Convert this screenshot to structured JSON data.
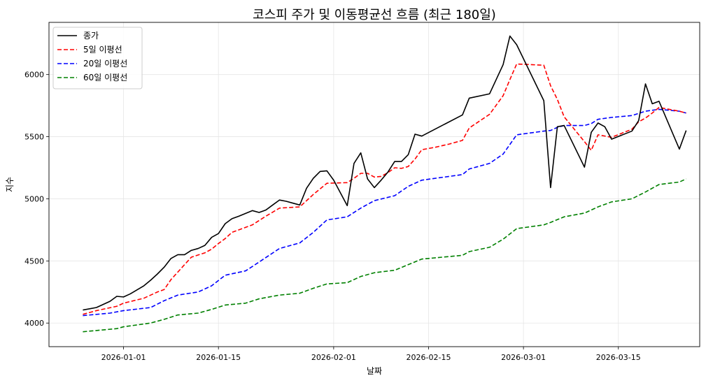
{
  "chart_data": {
    "type": "line",
    "title": "코스피 주가 및 이동평균선 흐름 (최근 180일)",
    "xlabel": "날짜",
    "ylabel": "지수",
    "xlim": [
      "2025-12-21",
      "2026-03-27"
    ],
    "ylim": [
      3810,
      6420
    ],
    "x_ticks": [
      "2026-01-01",
      "2026-01-15",
      "2026-02-01",
      "2026-02-15",
      "2026-03-01",
      "2026-03-15"
    ],
    "y_ticks": [
      4000,
      4500,
      5000,
      5500,
      6000
    ],
    "grid": true,
    "legend_position": "top-left",
    "series": [
      {
        "name": "종가",
        "color": "#000000",
        "style": "solid",
        "points": [
          [
            "2025-12-26",
            4105
          ],
          [
            "2025-12-27",
            4115
          ],
          [
            "2025-12-28",
            4125
          ],
          [
            "2025-12-30",
            4175
          ],
          [
            "2025-12-31",
            4215
          ],
          [
            "2026-01-01",
            4210
          ],
          [
            "2026-01-02",
            4235
          ],
          [
            "2026-01-04",
            4300
          ],
          [
            "2026-01-05",
            4345
          ],
          [
            "2026-01-06",
            4395
          ],
          [
            "2026-01-07",
            4450
          ],
          [
            "2026-01-08",
            4520
          ],
          [
            "2026-01-09",
            4550
          ],
          [
            "2026-01-10",
            4550
          ],
          [
            "2026-01-11",
            4585
          ],
          [
            "2026-01-12",
            4600
          ],
          [
            "2026-01-13",
            4625
          ],
          [
            "2026-01-14",
            4690
          ],
          [
            "2026-01-15",
            4720
          ],
          [
            "2026-01-16",
            4800
          ],
          [
            "2026-01-17",
            4840
          ],
          [
            "2026-01-18",
            4860
          ],
          [
            "2026-01-20",
            4905
          ],
          [
            "2026-01-21",
            4890
          ],
          [
            "2026-01-22",
            4910
          ],
          [
            "2026-01-23",
            4950
          ],
          [
            "2026-01-24",
            4990
          ],
          [
            "2026-01-25",
            4980
          ],
          [
            "2026-01-26",
            4965
          ],
          [
            "2026-01-27",
            4950
          ],
          [
            "2026-01-28",
            5085
          ],
          [
            "2026-01-29",
            5165
          ],
          [
            "2026-01-30",
            5220
          ],
          [
            "2026-01-31",
            5225
          ],
          [
            "2026-02-01",
            5150
          ],
          [
            "2026-02-03",
            4945
          ],
          [
            "2026-02-04",
            5285
          ],
          [
            "2026-02-05",
            5370
          ],
          [
            "2026-02-06",
            5160
          ],
          [
            "2026-02-07",
            5090
          ],
          [
            "2026-02-08",
            5150
          ],
          [
            "2026-02-09",
            5215
          ],
          [
            "2026-02-10",
            5300
          ],
          [
            "2026-02-11",
            5300
          ],
          [
            "2026-02-12",
            5355
          ],
          [
            "2026-02-13",
            5520
          ],
          [
            "2026-02-14",
            5505
          ],
          [
            "2026-02-20",
            5675
          ],
          [
            "2026-02-21",
            5810
          ],
          [
            "2026-02-24",
            5845
          ],
          [
            "2026-02-26",
            6080
          ],
          [
            "2026-02-27",
            6310
          ],
          [
            "2026-02-28",
            6240
          ],
          [
            "2026-03-04",
            5790
          ],
          [
            "2026-03-05",
            5090
          ],
          [
            "2026-03-06",
            5580
          ],
          [
            "2026-03-07",
            5590
          ],
          [
            "2026-03-10",
            5255
          ],
          [
            "2026-03-11",
            5535
          ],
          [
            "2026-03-12",
            5610
          ],
          [
            "2026-03-13",
            5580
          ],
          [
            "2026-03-14",
            5480
          ],
          [
            "2026-03-17",
            5545
          ],
          [
            "2026-03-18",
            5630
          ],
          [
            "2026-03-19",
            5925
          ],
          [
            "2026-03-20",
            5765
          ],
          [
            "2026-03-21",
            5785
          ],
          [
            "2026-03-24",
            5400
          ],
          [
            "2026-03-25",
            5550
          ]
        ]
      },
      {
        "name": "5일 이평선",
        "color": "#ff0000",
        "style": "dashed",
        "points": [
          [
            "2025-12-26",
            4070
          ],
          [
            "2025-12-28",
            4100
          ],
          [
            "2025-12-31",
            4135
          ],
          [
            "2026-01-01",
            4160
          ],
          [
            "2026-01-04",
            4200
          ],
          [
            "2026-01-06",
            4250
          ],
          [
            "2026-01-07",
            4270
          ],
          [
            "2026-01-08",
            4350
          ],
          [
            "2026-01-10",
            4470
          ],
          [
            "2026-01-11",
            4530
          ],
          [
            "2026-01-13",
            4565
          ],
          [
            "2026-01-14",
            4595
          ],
          [
            "2026-01-15",
            4640
          ],
          [
            "2026-01-16",
            4680
          ],
          [
            "2026-01-17",
            4730
          ],
          [
            "2026-01-20",
            4790
          ],
          [
            "2026-01-22",
            4860
          ],
          [
            "2026-01-24",
            4925
          ],
          [
            "2026-01-27",
            4935
          ],
          [
            "2026-01-28",
            4985
          ],
          [
            "2026-01-29",
            5035
          ],
          [
            "2026-01-30",
            5080
          ],
          [
            "2026-01-31",
            5125
          ],
          [
            "2026-02-03",
            5130
          ],
          [
            "2026-02-04",
            5165
          ],
          [
            "2026-02-05",
            5205
          ],
          [
            "2026-02-06",
            5205
          ],
          [
            "2026-02-07",
            5175
          ],
          [
            "2026-02-08",
            5180
          ],
          [
            "2026-02-09",
            5210
          ],
          [
            "2026-02-10",
            5250
          ],
          [
            "2026-02-11",
            5245
          ],
          [
            "2026-02-12",
            5260
          ],
          [
            "2026-02-13",
            5320
          ],
          [
            "2026-02-14",
            5395
          ],
          [
            "2026-02-16",
            5415
          ],
          [
            "2026-02-18",
            5440
          ],
          [
            "2026-02-20",
            5470
          ],
          [
            "2026-02-21",
            5570
          ],
          [
            "2026-02-24",
            5680
          ],
          [
            "2026-02-26",
            5830
          ],
          [
            "2026-02-27",
            5960
          ],
          [
            "2026-02-28",
            6085
          ],
          [
            "2026-03-04",
            6075
          ],
          [
            "2026-03-05",
            5910
          ],
          [
            "2026-03-06",
            5800
          ],
          [
            "2026-03-07",
            5660
          ],
          [
            "2026-03-10",
            5460
          ],
          [
            "2026-03-11",
            5390
          ],
          [
            "2026-03-12",
            5515
          ],
          [
            "2026-03-14",
            5495
          ],
          [
            "2026-03-17",
            5560
          ],
          [
            "2026-03-18",
            5620
          ],
          [
            "2026-03-19",
            5650
          ],
          [
            "2026-03-20",
            5690
          ],
          [
            "2026-03-21",
            5735
          ],
          [
            "2026-03-24",
            5705
          ],
          [
            "2026-03-25",
            5690
          ]
        ]
      },
      {
        "name": "20일 이평선",
        "color": "#0000ff",
        "style": "dashed",
        "points": [
          [
            "2025-12-26",
            4060
          ],
          [
            "2025-12-30",
            4080
          ],
          [
            "2026-01-01",
            4100
          ],
          [
            "2026-01-05",
            4125
          ],
          [
            "2026-01-07",
            4180
          ],
          [
            "2026-01-09",
            4225
          ],
          [
            "2026-01-12",
            4250
          ],
          [
            "2026-01-14",
            4300
          ],
          [
            "2026-01-16",
            4385
          ],
          [
            "2026-01-19",
            4420
          ],
          [
            "2026-01-20",
            4455
          ],
          [
            "2026-01-24",
            4600
          ],
          [
            "2026-01-26",
            4630
          ],
          [
            "2026-01-27",
            4645
          ],
          [
            "2026-01-29",
            4730
          ],
          [
            "2026-01-31",
            4830
          ],
          [
            "2026-02-03",
            4855
          ],
          [
            "2026-02-05",
            4925
          ],
          [
            "2026-02-07",
            4985
          ],
          [
            "2026-02-10",
            5025
          ],
          [
            "2026-02-12",
            5100
          ],
          [
            "2026-02-14",
            5150
          ],
          [
            "2026-02-20",
            5195
          ],
          [
            "2026-02-21",
            5240
          ],
          [
            "2026-02-24",
            5285
          ],
          [
            "2026-02-26",
            5360
          ],
          [
            "2026-02-28",
            5515
          ],
          [
            "2026-03-04",
            5545
          ],
          [
            "2026-03-05",
            5550
          ],
          [
            "2026-03-06",
            5575
          ],
          [
            "2026-03-07",
            5590
          ],
          [
            "2026-03-10",
            5590
          ],
          [
            "2026-03-11",
            5605
          ],
          [
            "2026-03-12",
            5640
          ],
          [
            "2026-03-14",
            5655
          ],
          [
            "2026-03-17",
            5670
          ],
          [
            "2026-03-19",
            5705
          ],
          [
            "2026-03-21",
            5720
          ],
          [
            "2026-03-24",
            5705
          ],
          [
            "2026-03-25",
            5690
          ]
        ]
      },
      {
        "name": "60일 이평선",
        "color": "#008000",
        "style": "dashed",
        "points": [
          [
            "2025-12-26",
            3930
          ],
          [
            "2025-12-31",
            3955
          ],
          [
            "2026-01-01",
            3970
          ],
          [
            "2026-01-05",
            4000
          ],
          [
            "2026-01-07",
            4030
          ],
          [
            "2026-01-09",
            4065
          ],
          [
            "2026-01-12",
            4080
          ],
          [
            "2026-01-14",
            4110
          ],
          [
            "2026-01-16",
            4145
          ],
          [
            "2026-01-19",
            4160
          ],
          [
            "2026-01-21",
            4195
          ],
          [
            "2026-01-24",
            4225
          ],
          [
            "2026-01-27",
            4240
          ],
          [
            "2026-01-29",
            4280
          ],
          [
            "2026-01-31",
            4315
          ],
          [
            "2026-02-03",
            4325
          ],
          [
            "2026-02-05",
            4375
          ],
          [
            "2026-02-07",
            4405
          ],
          [
            "2026-02-10",
            4425
          ],
          [
            "2026-02-12",
            4470
          ],
          [
            "2026-02-14",
            4515
          ],
          [
            "2026-02-20",
            4545
          ],
          [
            "2026-02-21",
            4575
          ],
          [
            "2026-02-24",
            4610
          ],
          [
            "2026-02-26",
            4675
          ],
          [
            "2026-02-28",
            4760
          ],
          [
            "2026-03-04",
            4790
          ],
          [
            "2026-03-05",
            4810
          ],
          [
            "2026-03-07",
            4855
          ],
          [
            "2026-03-10",
            4885
          ],
          [
            "2026-03-12",
            4935
          ],
          [
            "2026-03-14",
            4975
          ],
          [
            "2026-03-17",
            5000
          ],
          [
            "2026-03-19",
            5055
          ],
          [
            "2026-03-21",
            5115
          ],
          [
            "2026-03-24",
            5135
          ],
          [
            "2026-03-25",
            5160
          ]
        ]
      }
    ]
  }
}
